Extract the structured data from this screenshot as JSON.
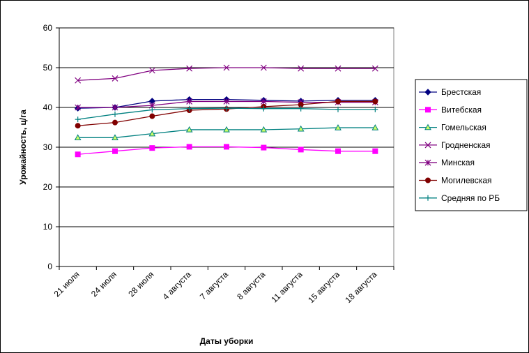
{
  "chart_data": {
    "type": "line",
    "title": "",
    "xlabel": "Даты уборки",
    "ylabel": "Урожайность, ц/га",
    "ylim": [
      0,
      60
    ],
    "yticks": [
      0,
      10,
      20,
      30,
      40,
      50,
      60
    ],
    "grid": "horizontal",
    "legend": "right",
    "categories": [
      "21 июля",
      "24 июля",
      "28 июля",
      "4 августа",
      "7 августа",
      "8 августа",
      "11 августа",
      "15 августа",
      "18 августа"
    ],
    "series": [
      {
        "name": "Брестская",
        "marker": "diamond",
        "color": "#000080",
        "values": [
          39.8,
          40.0,
          41.6,
          42.0,
          42.0,
          41.8,
          41.6,
          41.8,
          41.8
        ]
      },
      {
        "name": "Витебская",
        "marker": "square",
        "color": "#FF00FF",
        "values": [
          28.2,
          29.0,
          29.8,
          30.1,
          30.1,
          29.9,
          29.4,
          29.0,
          29.0
        ]
      },
      {
        "name": "Гомельская",
        "marker": "triangle",
        "color": "#008080",
        "values": [
          32.4,
          32.4,
          33.4,
          34.4,
          34.4,
          34.4,
          34.6,
          34.9,
          34.9
        ]
      },
      {
        "name": "Гродненская",
        "marker": "x",
        "color": "#800080",
        "values": [
          46.8,
          47.3,
          49.3,
          49.8,
          50.0,
          50.0,
          49.8,
          49.8,
          49.8
        ]
      },
      {
        "name": "Минская",
        "marker": "star",
        "color": "#800080",
        "values": [
          40.0,
          40.0,
          40.5,
          41.5,
          41.5,
          41.5,
          41.3,
          41.3,
          41.3
        ]
      },
      {
        "name": "Могилевская",
        "marker": "circle",
        "color": "#800000",
        "values": [
          35.4,
          36.2,
          37.8,
          39.3,
          39.6,
          40.2,
          40.7,
          41.5,
          41.5
        ]
      },
      {
        "name": "Средняя по РБ",
        "marker": "plus",
        "color": "#008080",
        "values": [
          37.0,
          38.3,
          39.4,
          39.7,
          39.8,
          39.7,
          39.7,
          39.5,
          39.5
        ]
      }
    ]
  }
}
